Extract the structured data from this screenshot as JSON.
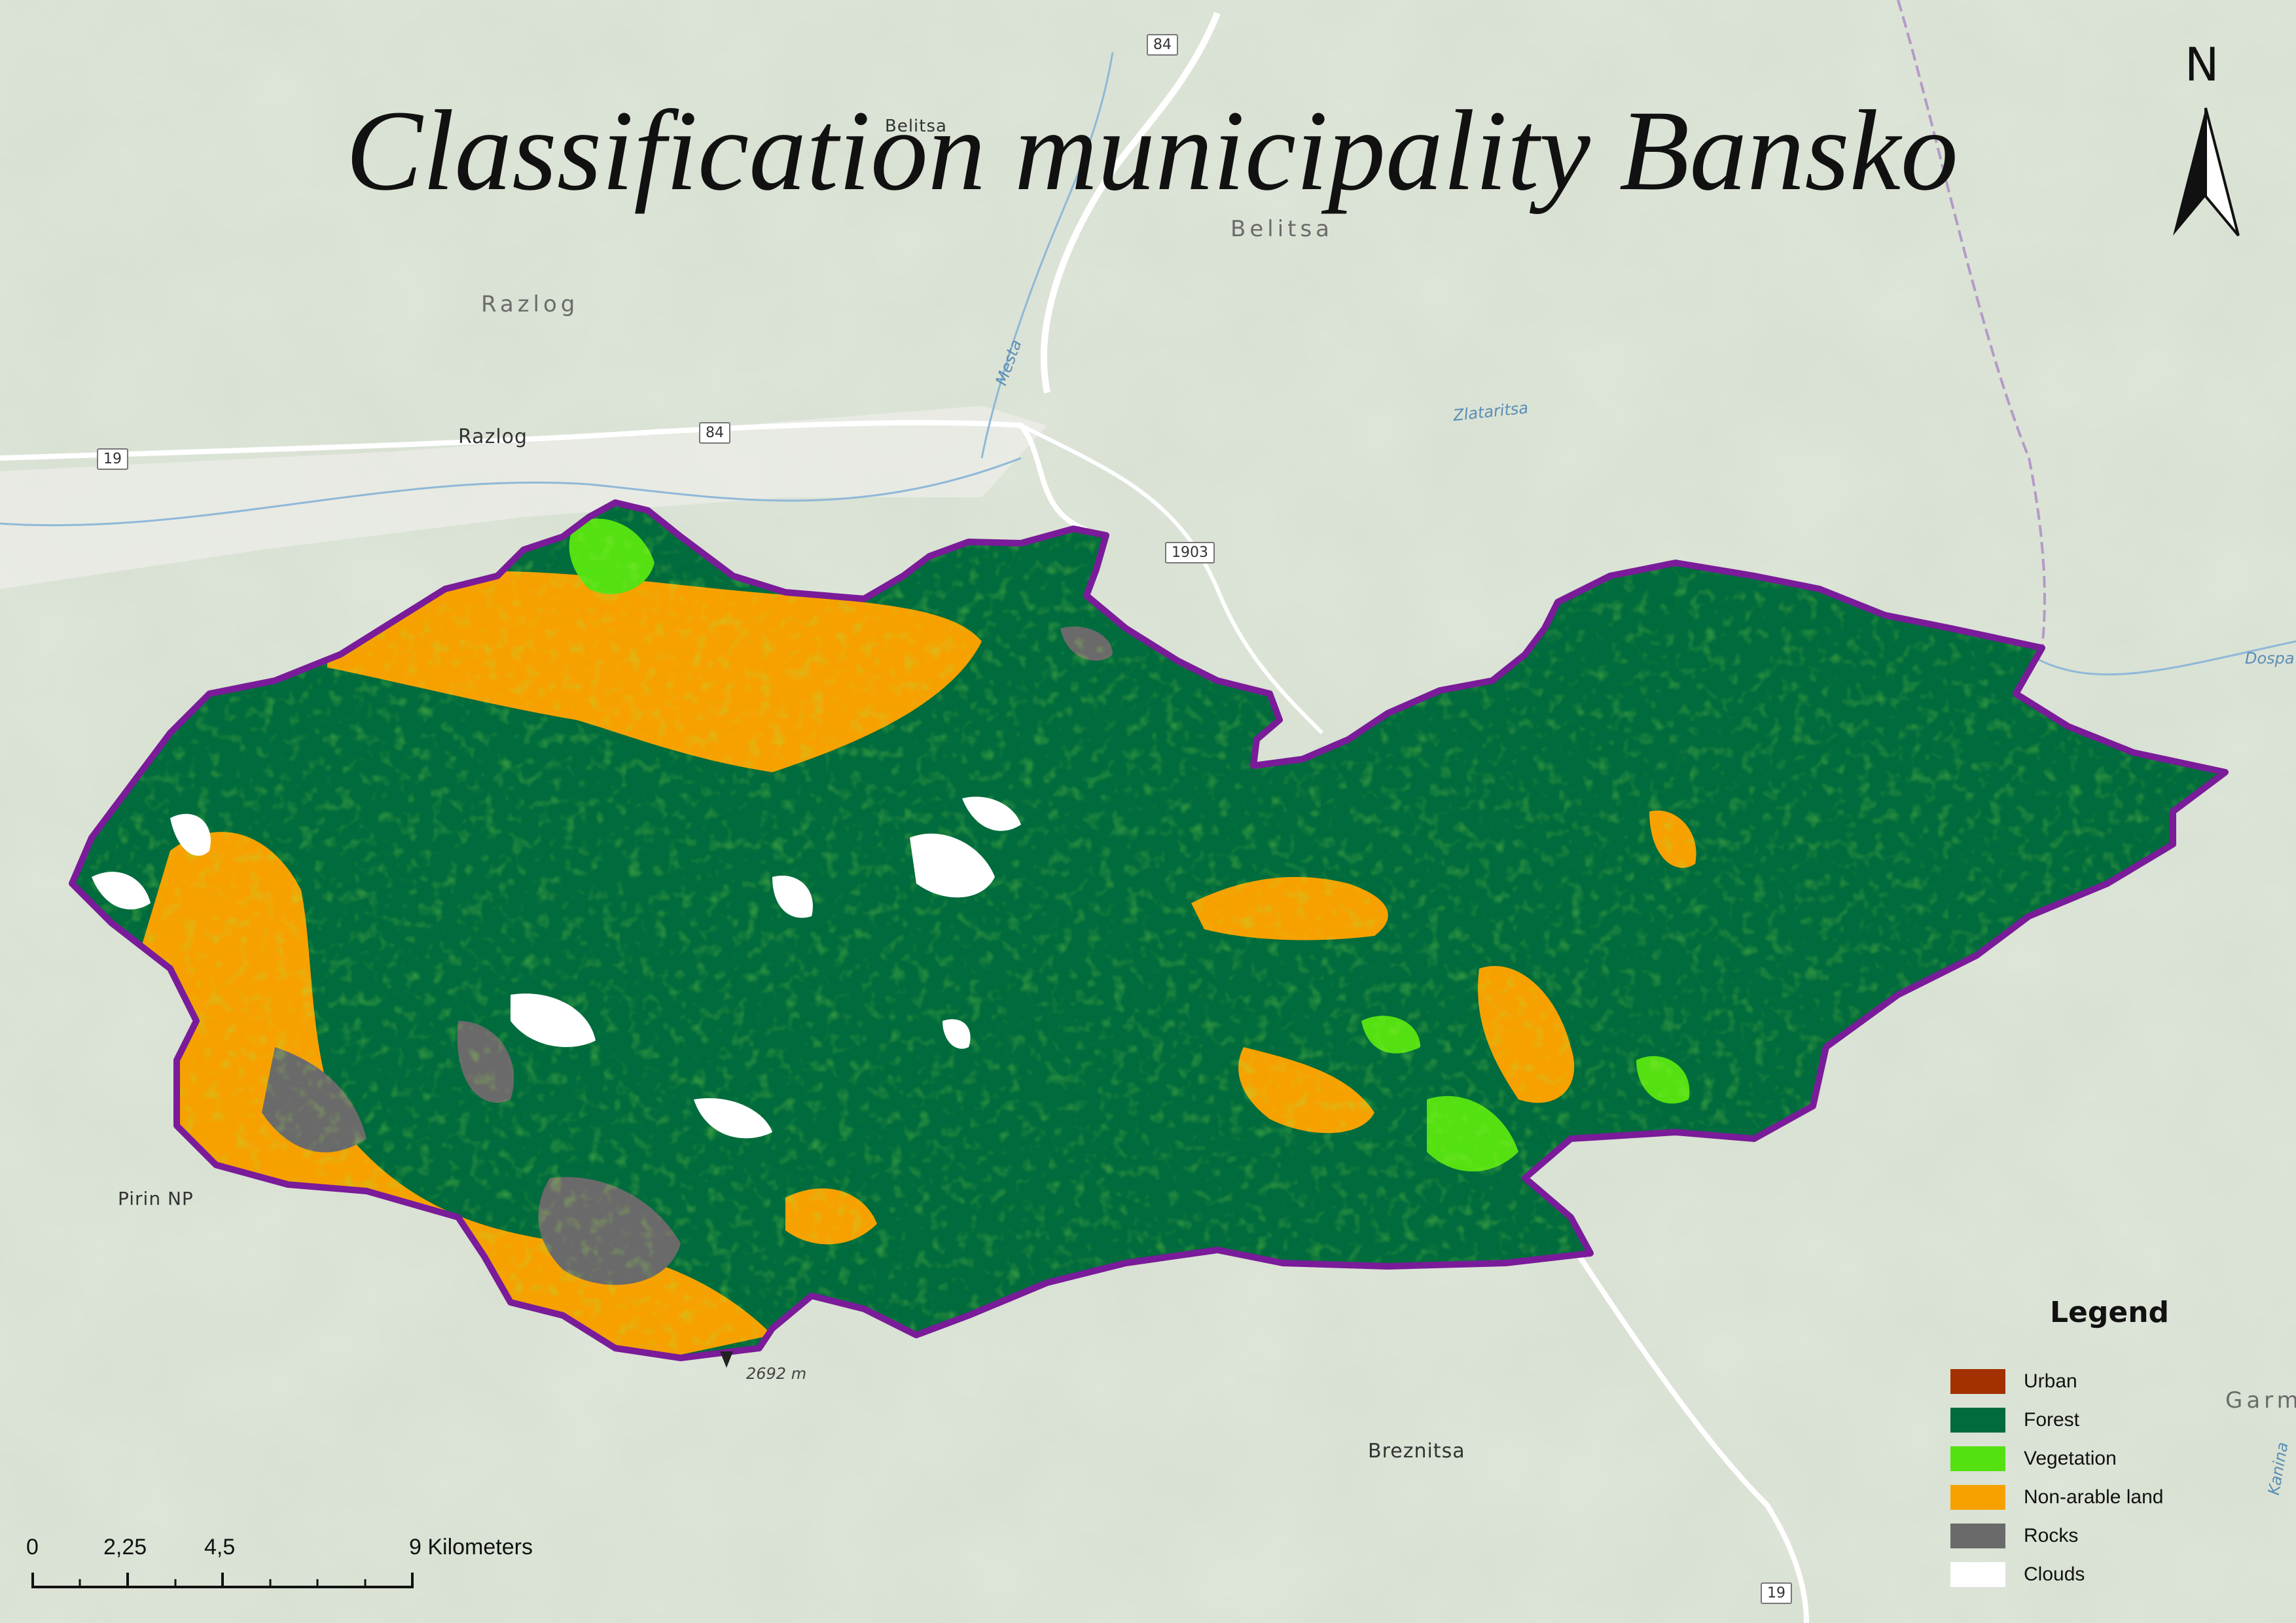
{
  "map": {
    "title": "Classification municipality Bansko",
    "colors": {
      "background": "#dfe6da",
      "terrain_dark": "#b9c9ae",
      "boundary": "#7a1b99",
      "urban": "#a33100",
      "forest": "#006b3c",
      "vegetation": "#55e012",
      "non_arable": "#f7a101",
      "rocks": "#6a6a6a",
      "clouds": "#ffffff"
    },
    "places": {
      "belitsa_top": "Belitsa",
      "belitsa_region": "Belitsa",
      "razlog_region": "Razlog",
      "razlog_town": "Razlog",
      "pirin": "Pirin NP",
      "breznitsa": "Breznitsa",
      "garm": "Garm",
      "dospat": "Dospa"
    },
    "water": {
      "mesta": "Mesta",
      "zlataritsa": "Zlataritsa",
      "kanina": "Kanina"
    },
    "roads": {
      "r84_top": "84",
      "r84_mid": "84",
      "r19_left": "19",
      "r1903": "1903",
      "r19_bottom": "19"
    },
    "elevation": "2692 m",
    "north_label": "N"
  },
  "legend": {
    "title": "Legend",
    "items": [
      {
        "label": "Urban",
        "color": "#a33100"
      },
      {
        "label": "Forest",
        "color": "#006b3c"
      },
      {
        "label": "Vegetation",
        "color": "#55e012"
      },
      {
        "label": "Non-arable land",
        "color": "#f7a101"
      },
      {
        "label": "Rocks",
        "color": "#6a6a6a"
      },
      {
        "label": "Clouds",
        "color": "#ffffff"
      }
    ]
  },
  "scale_bar": {
    "labels": [
      "0",
      "2,25",
      "4,5",
      "9 Kilometers"
    ]
  }
}
